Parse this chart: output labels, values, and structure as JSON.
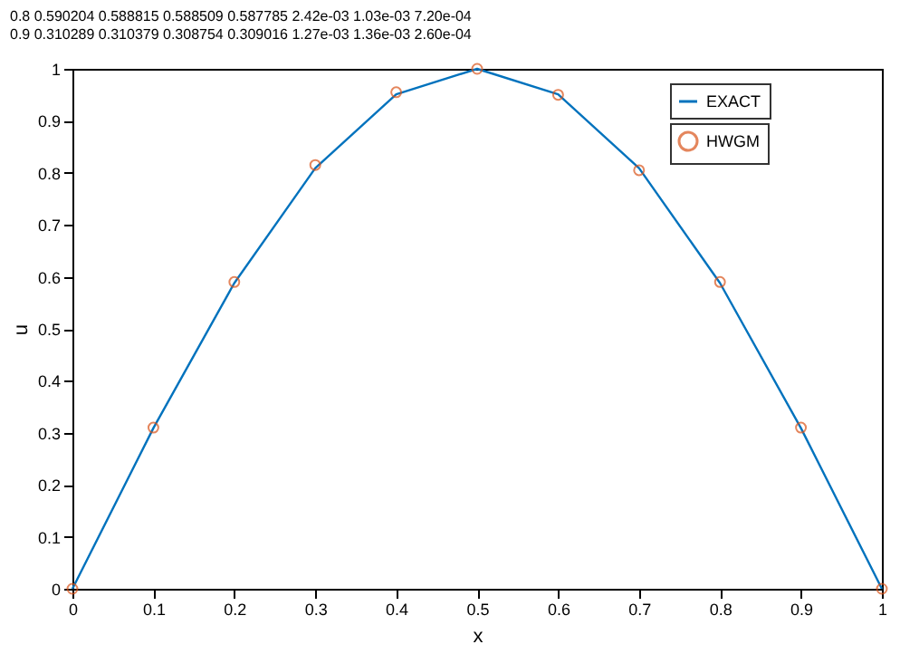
{
  "chart_data": {
    "type": "line",
    "xlabel": "x",
    "ylabel": "u",
    "annotations": [
      "0.8    0.590204    0.588815    0.588509    0.587785    2.42e-03    1.03e-03    7.20e-04",
      "0.9    0.310289    0.310379    0.308754    0.309016    1.27e-03    1.36e-03    2.60e-04"
    ],
    "x": [
      0,
      0.1,
      0.2,
      0.3,
      0.4,
      0.5,
      0.6,
      0.7,
      0.8,
      0.9,
      1
    ],
    "series": [
      {
        "name": "EXACT",
        "color": "#0072bd",
        "marker": "none",
        "values": [
          0,
          0.309,
          0.588,
          0.809,
          0.951,
          1,
          0.951,
          0.809,
          0.588,
          0.309,
          0
        ]
      },
      {
        "name": "HWGM",
        "color": "#d95319",
        "type": "scatter",
        "marker": "circle",
        "values": [
          0,
          0.31,
          0.59,
          0.815,
          0.955,
          1,
          0.95,
          0.805,
          0.59,
          0.31,
          0
        ]
      }
    ],
    "xlim": [
      0,
      1
    ],
    "xticks": [
      0,
      0.1,
      0.2,
      0.3,
      0.4,
      0.5,
      0.6,
      0.7,
      0.8,
      0.9,
      1
    ],
    "ylim": [
      0,
      1
    ],
    "yticks": [
      0,
      0.1,
      0.2,
      0.3,
      0.4,
      0.5,
      0.6,
      0.7,
      0.8,
      0.9,
      1
    ],
    "grid": false,
    "legend": "top right"
  }
}
